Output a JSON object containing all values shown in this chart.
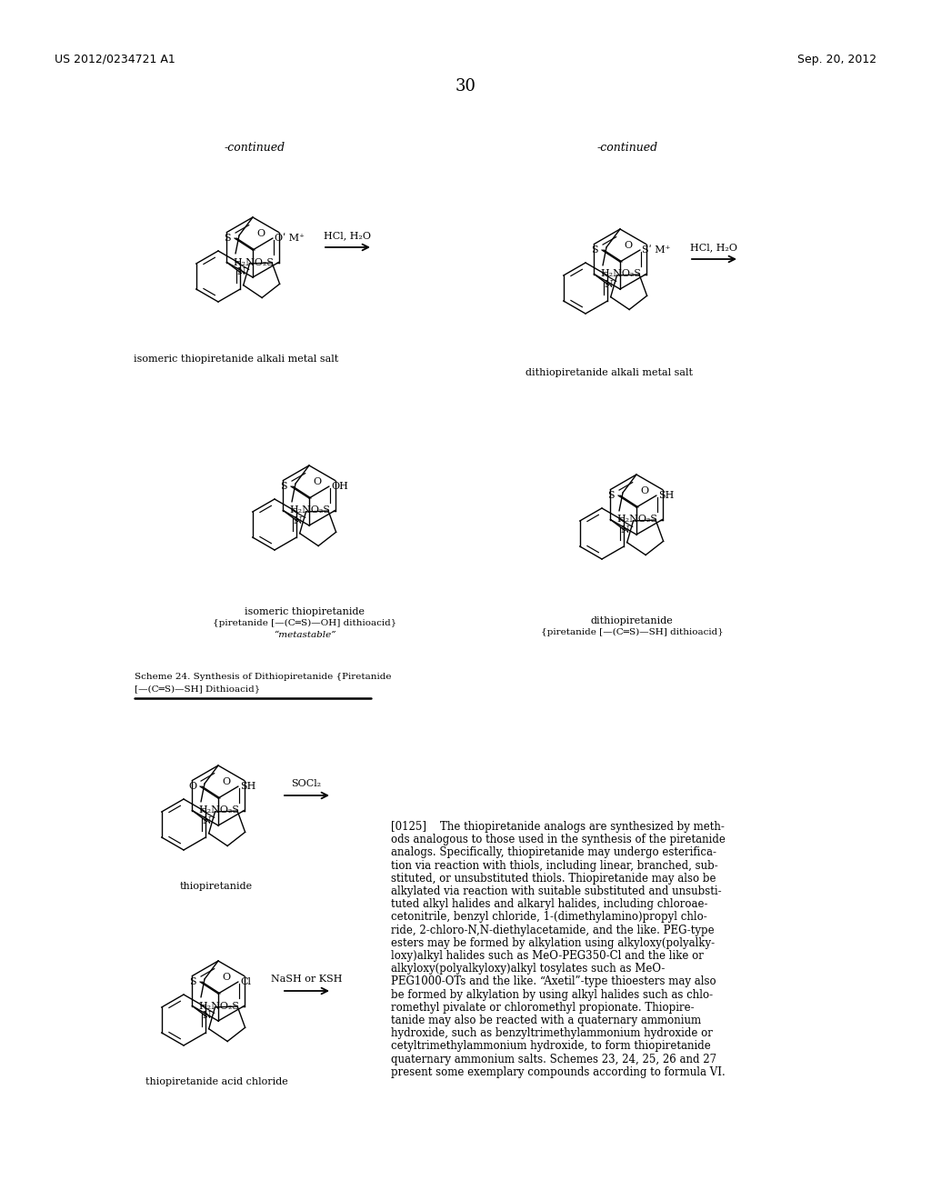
{
  "background_color": "#ffffff",
  "header_left": "US 2012/0234721 A1",
  "header_right": "Sep. 20, 2012",
  "page_number": "30"
}
